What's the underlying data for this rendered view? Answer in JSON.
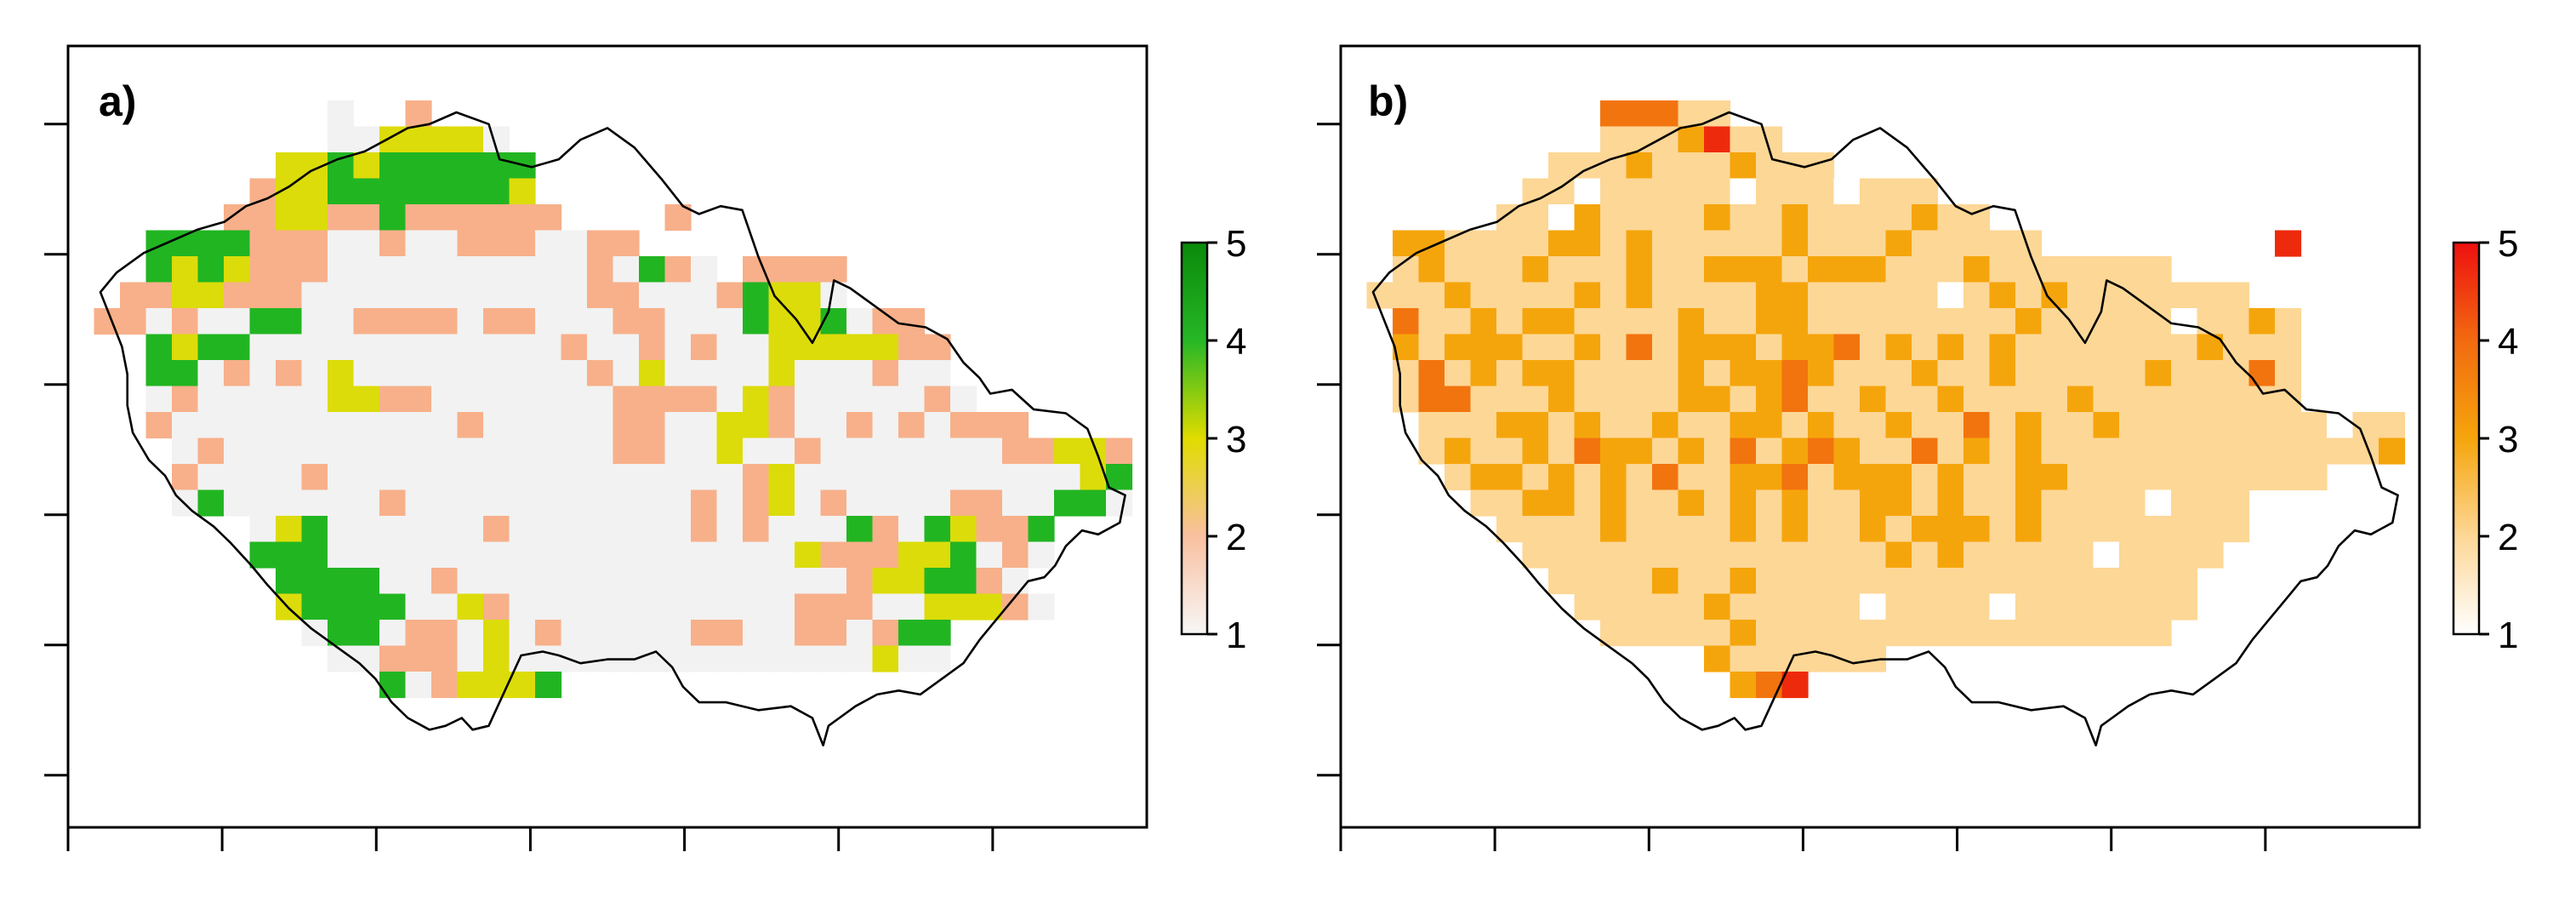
{
  "chart_data": [
    {
      "type": "heatmap",
      "panel_label": "a)",
      "colormap": [
        "#f2f2f2",
        "#f7b08a",
        "#dcdc0a",
        "#22b522",
        "#0b8c14"
      ],
      "legend": {
        "min": 1,
        "max": 5,
        "ticks": [
          "1",
          "2",
          "3",
          "4",
          "5"
        ],
        "colors": [
          "#f7f7f7",
          "#f9c0a0",
          "#e0dc00",
          "#26b726",
          "#0a8a0a"
        ]
      },
      "xlim": [
        0,
        7
      ],
      "ylim": [
        0,
        6
      ],
      "x_ticks": [
        0,
        1,
        2,
        3,
        4,
        5,
        6
      ],
      "y_ticks": [
        0.4,
        1.4,
        2.4,
        3.4,
        4.4,
        5.4
      ],
      "tick_labels_visible": false,
      "grid_cols": 35,
      "grid_rows": 23,
      "rows": [
        "..........1..2............................",
        "..........1133331...................................",
        "........3343444444.........................................",
        ".......23344444443.........................................",
        "......2233224222222....2...........................",
        "...4444222112112221122...........................",
        "...4343222111111111121421.2222.................",
        "..2233222111111111112211124331.................",
        ".22121144112222122111221114334122............",
        "...4344111111111111211212113333322.............",
        "...4412121311111111121311113111211..........",
        "...12111113322111111122221321111121.......",
        "...2111111111112111112211332112121222....",
        "....1211111111111111122113112111111122332...",
        "....2111121111111111111111231111111111134232.",
        "....1411111121111111111121231211112211441......",
        ".......1341111112111111121211142143224.......",
        ".......4441111111111111111113222334121.......",
        "........44441121111111111111112334421.......",
        "........344441132111111111112221133321.......",
        ".........1441221312111112211221244...........",
        "..........112221311111111111111311...........",
        "............4123334.........................."
      ]
    },
    {
      "type": "heatmap",
      "panel_label": "b)",
      "colormap": [
        "#ffffff",
        "#fdd796",
        "#f5a50c",
        "#f2740e",
        "#ee2a0c"
      ],
      "legend": {
        "min": 1,
        "max": 5,
        "ticks": [
          "1",
          "2",
          "3",
          "4",
          "5"
        ],
        "colors": [
          "#ffffff",
          "#fdd796",
          "#f5a50c",
          "#f26a10",
          "#ee1010"
        ]
      },
      "xlim": [
        0,
        7
      ],
      "ylim": [
        0,
        6
      ],
      "x_ticks": [
        0,
        1,
        2,
        3,
        4,
        5,
        6
      ],
      "y_ticks": [
        0.4,
        1.4,
        2.4,
        3.4,
        4.4,
        5.4
      ],
      "tick_labels_visible": false,
      "grid_cols": 35,
      "grid_rows": 23,
      "rows": [
        "..........44422...........................",
        "..........2223522...................................",
        "........22232223222.........................................",
        ".......2212222212221222.....................................",
        "......2213222232232222322......................",
        "..3322223323222223222322222.........5..............",
        "..232223222322333233322232222222.............",
        ".2223222232322223322222123232222222..........",
        "..42232332222322332222222232222212232......",
        "..32333223242333233423232322222223222.........",
        "..24232332222323343222322322222322242......",
        "..24422232222332342232232222322222222......",
        "...22233232232233232232242322322222222122....",
        "...23223243323242343224232322222222222223....",
        "....2332323242233423332322332222222222........",
        ".....223323223232322332322322221222.........",
        "......22223222232322323332322222222.........",
        ".......222222222222223232222212222..........",
        "........2222322322222222222222222...........",
        ".........222223222221222212222222...........",
        "..........2222232222222222222222............",
        "..............3222222....................",
        "...............345......................."
      ]
    }
  ]
}
